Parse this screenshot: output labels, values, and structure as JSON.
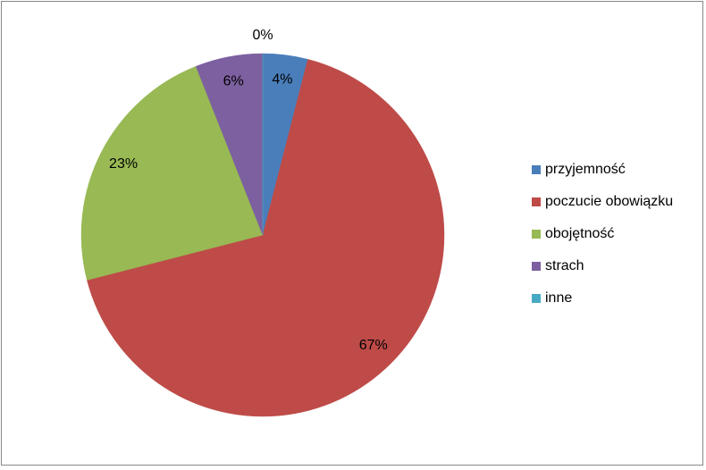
{
  "chart_data": {
    "type": "pie",
    "categories": [
      "przyjemność",
      "poczucie obowiązku",
      "obojętność",
      "strach",
      "inne"
    ],
    "values": [
      4,
      67,
      23,
      6,
      0
    ],
    "value_labels": [
      "4%",
      "67%",
      "23%",
      "6%",
      "0%"
    ],
    "colors": [
      "#4a7ebb",
      "#be4b48",
      "#98b954",
      "#7d60a0",
      "#46aac5"
    ],
    "legend": "right"
  }
}
